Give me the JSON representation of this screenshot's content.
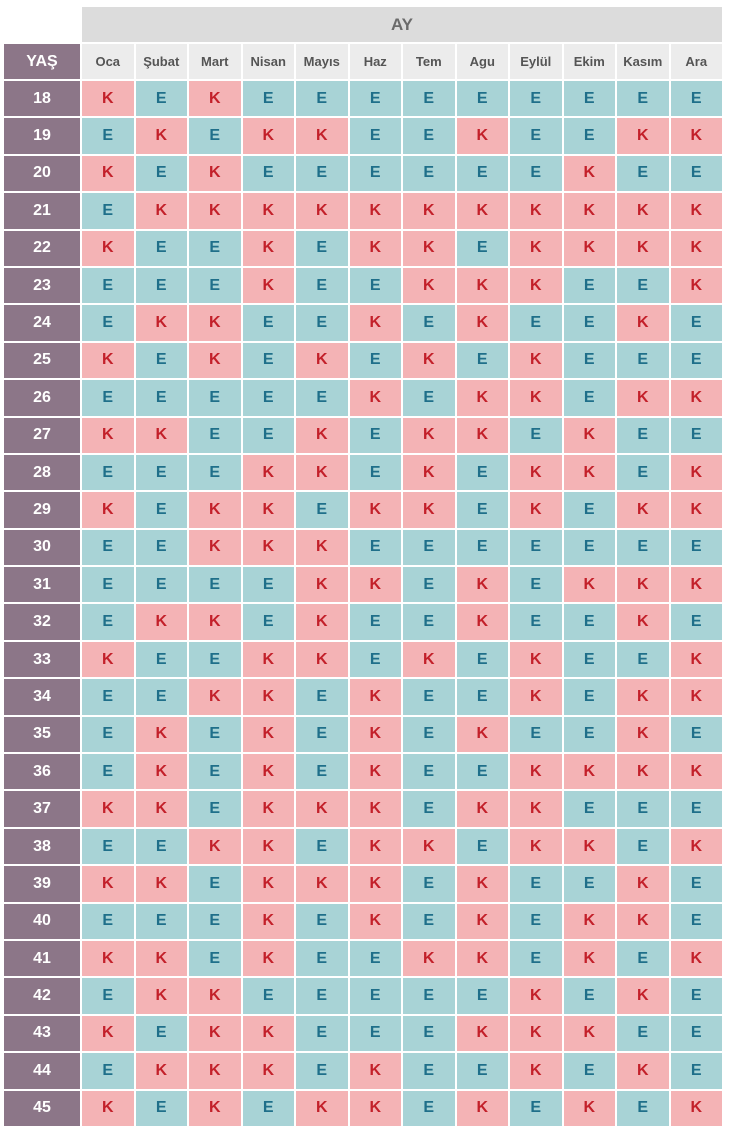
{
  "header": {
    "month_group_label": "AY",
    "age_label": "YAŞ"
  },
  "months": [
    "Oca",
    "Şubat",
    "Mart",
    "Nisan",
    "Mayıs",
    "Haz",
    "Tem",
    "Agu",
    "Eylül",
    "Ekim",
    "Kasım",
    "Ara"
  ],
  "legend_colors": {
    "K_bg": "#f4b3b5",
    "K_text": "#c3202a",
    "E_bg": "#a8d3d6",
    "E_text": "#1f6f8a",
    "age_bg": "#8c7688"
  },
  "rows": [
    {
      "age": "18",
      "cells": [
        "K",
        "E",
        "K",
        "E",
        "E",
        "E",
        "E",
        "E",
        "E",
        "E",
        "E",
        "E"
      ]
    },
    {
      "age": "19",
      "cells": [
        "E",
        "K",
        "E",
        "K",
        "K",
        "E",
        "E",
        "K",
        "E",
        "E",
        "K",
        "K"
      ]
    },
    {
      "age": "20",
      "cells": [
        "K",
        "E",
        "K",
        "E",
        "E",
        "E",
        "E",
        "E",
        "E",
        "K",
        "E",
        "E"
      ]
    },
    {
      "age": "21",
      "cells": [
        "E",
        "K",
        "K",
        "K",
        "K",
        "K",
        "K",
        "K",
        "K",
        "K",
        "K",
        "K"
      ]
    },
    {
      "age": "22",
      "cells": [
        "K",
        "E",
        "E",
        "K",
        "E",
        "K",
        "K",
        "E",
        "K",
        "K",
        "K",
        "K"
      ]
    },
    {
      "age": "23",
      "cells": [
        "E",
        "E",
        "E",
        "K",
        "E",
        "E",
        "K",
        "K",
        "K",
        "E",
        "E",
        "K"
      ]
    },
    {
      "age": "24",
      "cells": [
        "E",
        "K",
        "K",
        "E",
        "E",
        "K",
        "E",
        "K",
        "E",
        "E",
        "K",
        "E"
      ]
    },
    {
      "age": "25",
      "cells": [
        "K",
        "E",
        "K",
        "E",
        "K",
        "E",
        "K",
        "E",
        "K",
        "E",
        "E",
        "E"
      ]
    },
    {
      "age": "26",
      "cells": [
        "E",
        "E",
        "E",
        "E",
        "E",
        "K",
        "E",
        "K",
        "K",
        "E",
        "K",
        "K"
      ]
    },
    {
      "age": "27",
      "cells": [
        "K",
        "K",
        "E",
        "E",
        "K",
        "E",
        "K",
        "K",
        "E",
        "K",
        "E",
        "E"
      ]
    },
    {
      "age": "28",
      "cells": [
        "E",
        "E",
        "E",
        "K",
        "K",
        "E",
        "K",
        "E",
        "K",
        "K",
        "E",
        "K"
      ]
    },
    {
      "age": "29",
      "cells": [
        "K",
        "E",
        "K",
        "K",
        "E",
        "K",
        "K",
        "E",
        "K",
        "E",
        "K",
        "K"
      ]
    },
    {
      "age": "30",
      "cells": [
        "E",
        "E",
        "K",
        "K",
        "K",
        "E",
        "E",
        "E",
        "E",
        "E",
        "E",
        "E"
      ]
    },
    {
      "age": "31",
      "cells": [
        "E",
        "E",
        "E",
        "E",
        "K",
        "K",
        "E",
        "K",
        "E",
        "K",
        "K",
        "K"
      ]
    },
    {
      "age": "32",
      "cells": [
        "E",
        "K",
        "K",
        "E",
        "K",
        "E",
        "E",
        "K",
        "E",
        "E",
        "K",
        "E"
      ]
    },
    {
      "age": "33",
      "cells": [
        "K",
        "E",
        "E",
        "K",
        "K",
        "E",
        "K",
        "E",
        "K",
        "E",
        "E",
        "K"
      ]
    },
    {
      "age": "34",
      "cells": [
        "E",
        "E",
        "K",
        "K",
        "E",
        "K",
        "E",
        "E",
        "K",
        "E",
        "K",
        "K"
      ]
    },
    {
      "age": "35",
      "cells": [
        "E",
        "K",
        "E",
        "K",
        "E",
        "K",
        "E",
        "K",
        "E",
        "E",
        "K",
        "E"
      ]
    },
    {
      "age": "36",
      "cells": [
        "E",
        "K",
        "E",
        "K",
        "E",
        "K",
        "E",
        "E",
        "K",
        "K",
        "K",
        "K"
      ]
    },
    {
      "age": "37",
      "cells": [
        "K",
        "K",
        "E",
        "K",
        "K",
        "K",
        "E",
        "K",
        "K",
        "E",
        "E",
        "E"
      ]
    },
    {
      "age": "38",
      "cells": [
        "E",
        "E",
        "K",
        "K",
        "E",
        "K",
        "K",
        "E",
        "K",
        "K",
        "E",
        "K"
      ]
    },
    {
      "age": "39",
      "cells": [
        "K",
        "K",
        "E",
        "K",
        "K",
        "K",
        "E",
        "K",
        "E",
        "E",
        "K",
        "E"
      ]
    },
    {
      "age": "40",
      "cells": [
        "E",
        "E",
        "E",
        "K",
        "E",
        "K",
        "E",
        "K",
        "E",
        "K",
        "K",
        "E"
      ]
    },
    {
      "age": "41",
      "cells": [
        "K",
        "K",
        "E",
        "K",
        "E",
        "E",
        "K",
        "K",
        "E",
        "K",
        "E",
        "K"
      ]
    },
    {
      "age": "42",
      "cells": [
        "E",
        "K",
        "K",
        "E",
        "E",
        "E",
        "E",
        "E",
        "K",
        "E",
        "K",
        "E"
      ]
    },
    {
      "age": "43",
      "cells": [
        "K",
        "E",
        "K",
        "K",
        "E",
        "E",
        "E",
        "K",
        "K",
        "K",
        "E",
        "E"
      ]
    },
    {
      "age": "44",
      "cells": [
        "E",
        "K",
        "K",
        "K",
        "E",
        "K",
        "E",
        "E",
        "K",
        "E",
        "K",
        "E"
      ]
    },
    {
      "age": "45",
      "cells": [
        "K",
        "E",
        "K",
        "E",
        "K",
        "K",
        "E",
        "K",
        "E",
        "K",
        "E",
        "K"
      ]
    }
  ]
}
